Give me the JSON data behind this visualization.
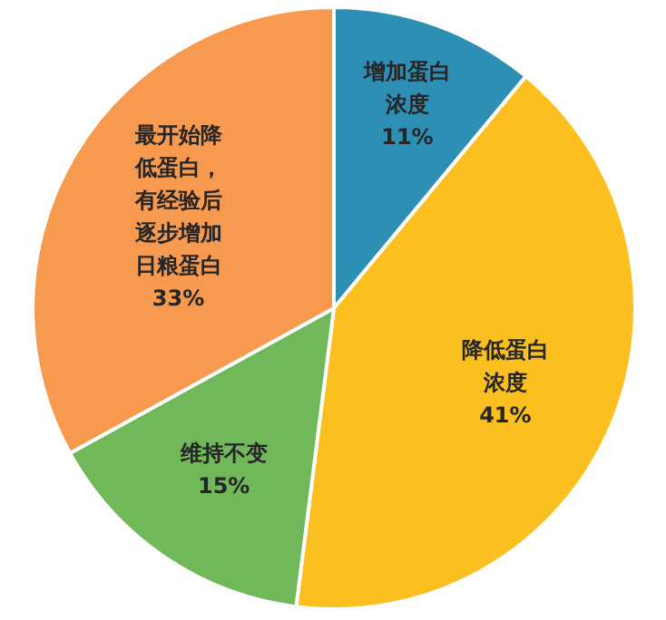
{
  "chart_data": {
    "type": "pie",
    "categories": [
      "增加蛋白浓度",
      "降低蛋白浓度",
      "维持不变",
      "最开始降低蛋白，有经验后逐步增加日粮蛋白"
    ],
    "values": [
      11,
      41,
      15,
      33
    ],
    "value_labels": [
      "11%",
      "41%",
      "15%",
      "33%"
    ],
    "colors": [
      "#2e8fb5",
      "#fbbf1f",
      "#70b85a",
      "#f79a4f"
    ]
  }
}
